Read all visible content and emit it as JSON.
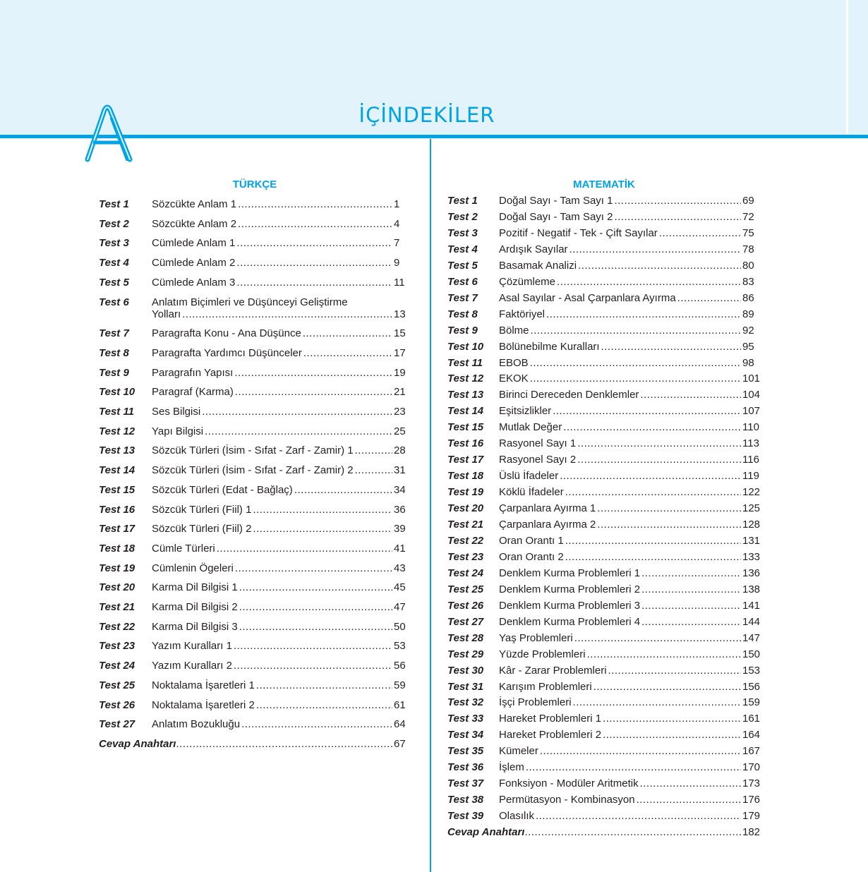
{
  "header": {
    "title": "İÇİNDEKİLER",
    "colors": {
      "accent": "#00a3e4",
      "header_bg": "#e3f3fc"
    }
  },
  "turkce": {
    "heading": "TÜRKÇE",
    "items": [
      {
        "label": "Test 1",
        "title": "Sözcükte Anlam 1",
        "page": "1"
      },
      {
        "label": "Test 2",
        "title": "Sözcükte Anlam 2",
        "page": "4"
      },
      {
        "label": "Test 3",
        "title": "Cümlede Anlam 1",
        "page": "7"
      },
      {
        "label": "Test 4",
        "title": "Cümlede Anlam 2",
        "page": "9"
      },
      {
        "label": "Test 5",
        "title": "Cümlede Anlam 3",
        "page": "11"
      },
      {
        "label": "Test 6",
        "title": "Anlatım Biçimleri ve Düşünceyi Geliştirme",
        "title2": "Yolları",
        "page": "13"
      },
      {
        "label": "Test 7",
        "title": "Paragrafta Konu - Ana Düşünce",
        "page": "15"
      },
      {
        "label": "Test 8",
        "title": "Paragrafta Yardımcı Düşünceler",
        "page": "17"
      },
      {
        "label": "Test 9",
        "title": "Paragrafın Yapısı",
        "page": "19"
      },
      {
        "label": "Test 10",
        "title": "Paragraf (Karma)",
        "page": "21"
      },
      {
        "label": "Test 11",
        "title": "Ses Bilgisi",
        "page": "23"
      },
      {
        "label": "Test 12",
        "title": "Yapı Bilgisi",
        "page": "25"
      },
      {
        "label": "Test 13",
        "title": "Sözcük Türleri (İsim - Sıfat - Zarf - Zamir) 1",
        "page": "28"
      },
      {
        "label": "Test 14",
        "title": "Sözcük Türleri (İsim - Sıfat - Zarf - Zamir) 2",
        "page": "31"
      },
      {
        "label": "Test 15",
        "title": "Sözcük Türleri (Edat - Bağlaç)",
        "page": "34"
      },
      {
        "label": "Test 16",
        "title": "Sözcük Türleri (Fiil) 1",
        "page": "36"
      },
      {
        "label": "Test 17",
        "title": "Sözcük Türleri (Fiil) 2",
        "page": "39"
      },
      {
        "label": "Test 18",
        "title": "Cümle Türleri",
        "page": "41"
      },
      {
        "label": "Test 19",
        "title": "Cümlenin Ögeleri",
        "page": "43"
      },
      {
        "label": "Test 20",
        "title": "Karma Dil Bilgisi 1",
        "page": "45"
      },
      {
        "label": "Test 21",
        "title": "Karma Dil Bilgisi 2",
        "page": "47"
      },
      {
        "label": "Test 22",
        "title": "Karma Dil Bilgisi 3",
        "page": "50"
      },
      {
        "label": "Test 23",
        "title": "Yazım Kuralları 1",
        "page": "53"
      },
      {
        "label": "Test 24",
        "title": "Yazım Kuralları 2",
        "page": "56"
      },
      {
        "label": "Test 25",
        "title": "Noktalama İşaretleri 1",
        "page": "59"
      },
      {
        "label": "Test 26",
        "title": "Noktalama İşaretleri 2",
        "page": "61"
      },
      {
        "label": "Test 27",
        "title": "Anlatım Bozukluğu",
        "page": "64"
      }
    ],
    "answer_key": {
      "label": "Cevap Anahtarı",
      "page": "67"
    }
  },
  "matematik": {
    "heading": "MATEMATİK",
    "items": [
      {
        "label": "Test 1",
        "title": "Doğal Sayı - Tam Sayı 1",
        "page": "69"
      },
      {
        "label": "Test 2",
        "title": "Doğal Sayı - Tam Sayı 2",
        "page": "72"
      },
      {
        "label": "Test 3",
        "title": "Pozitif - Negatif - Tek - Çift Sayılar",
        "page": "75"
      },
      {
        "label": "Test 4",
        "title": "Ardışık Sayılar",
        "page": "78"
      },
      {
        "label": "Test 5",
        "title": "Basamak Analizi",
        "page": "80"
      },
      {
        "label": "Test 6",
        "title": "Çözümleme",
        "page": "83"
      },
      {
        "label": "Test 7",
        "title": "Asal Sayılar - Asal Çarpanlara Ayırma",
        "page": "86"
      },
      {
        "label": "Test 8",
        "title": "Faktöriyel",
        "page": "89"
      },
      {
        "label": "Test 9",
        "title": "Bölme",
        "page": "92"
      },
      {
        "label": "Test 10",
        "title": "Bölünebilme Kuralları",
        "page": "95"
      },
      {
        "label": "Test 11",
        "title": "EBOB",
        "page": "98"
      },
      {
        "label": "Test 12",
        "title": "EKOK",
        "page": "101"
      },
      {
        "label": "Test 13",
        "title": "Birinci Dereceden Denklemler",
        "page": "104"
      },
      {
        "label": "Test 14",
        "title": "Eşitsizlikler",
        "page": "107"
      },
      {
        "label": "Test 15",
        "title": "Mutlak Değer",
        "page": "110"
      },
      {
        "label": "Test 16",
        "title": "Rasyonel Sayı 1",
        "page": "113"
      },
      {
        "label": "Test 17",
        "title": "Rasyonel Sayı 2",
        "page": "116"
      },
      {
        "label": "Test 18",
        "title": "Üslü İfadeler",
        "page": "119"
      },
      {
        "label": "Test 19",
        "title": "Köklü İfadeler",
        "page": "122"
      },
      {
        "label": "Test 20",
        "title": "Çarpanlara Ayırma 1",
        "page": "125"
      },
      {
        "label": "Test 21",
        "title": "Çarpanlara Ayırma 2",
        "page": "128"
      },
      {
        "label": "Test 22",
        "title": "Oran Orantı 1",
        "page": "131"
      },
      {
        "label": "Test 23",
        "title": "Oran Orantı 2",
        "page": "133"
      },
      {
        "label": "Test 24",
        "title": "Denklem Kurma Problemleri 1",
        "page": "136"
      },
      {
        "label": "Test 25",
        "title": "Denklem Kurma Problemleri 2",
        "page": "138"
      },
      {
        "label": "Test 26",
        "title": "Denklem Kurma Problemleri 3",
        "page": "141"
      },
      {
        "label": "Test 27",
        "title": "Denklem Kurma Problemleri 4",
        "page": "144"
      },
      {
        "label": "Test 28",
        "title": "Yaş Problemleri",
        "page": "147"
      },
      {
        "label": "Test 29",
        "title": "Yüzde Problemleri",
        "page": "150"
      },
      {
        "label": "Test 30",
        "title": "Kâr - Zarar Problemleri",
        "page": "153"
      },
      {
        "label": "Test 31",
        "title": "Karışım Problemleri",
        "page": "156"
      },
      {
        "label": "Test 32",
        "title": "İşçi Problemleri",
        "page": "159"
      },
      {
        "label": "Test 33",
        "title": "Hareket Problemleri 1",
        "page": "161"
      },
      {
        "label": "Test 34",
        "title": "Hareket Problemleri 2",
        "page": "164"
      },
      {
        "label": "Test 35",
        "title": "Kümeler",
        "page": "167"
      },
      {
        "label": "Test 36",
        "title": "İşlem",
        "page": "170"
      },
      {
        "label": "Test 37",
        "title": "Fonksiyon - Modüler Aritmetik",
        "page": "173"
      },
      {
        "label": "Test 38",
        "title": "Permütasyon - Kombinasyon",
        "page": "176"
      },
      {
        "label": "Test 39",
        "title": "Olasılık",
        "page": "179"
      }
    ],
    "answer_key": {
      "label": "Cevap Anahtarı",
      "page": "182"
    }
  }
}
